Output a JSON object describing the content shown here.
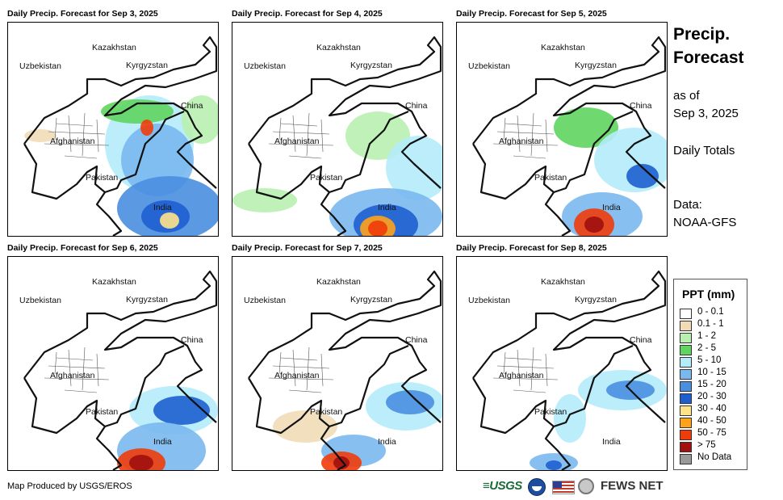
{
  "panels": [
    {
      "title": "Daily Precip. Forecast for Sep 3, 2025"
    },
    {
      "title": "Daily Precip. Forecast for Sep 4, 2025"
    },
    {
      "title": "Daily Precip. Forecast for Sep 5, 2025"
    },
    {
      "title": "Daily Precip. Forecast for Sep 6, 2025"
    },
    {
      "title": "Daily Precip. Forecast for Sep 7, 2025"
    },
    {
      "title": "Daily Precip. Forecast for Sep 8, 2025"
    }
  ],
  "map_labels": {
    "kazakhstan": "Kazakhstan",
    "uzbekistan": "Uzbekistan",
    "kyrgyzstan": "Kyrgyzstan",
    "china": "China",
    "afghanistan": "Afghanistan",
    "pakistan": "Pakistan",
    "india": "India"
  },
  "side": {
    "title_line1": "Precip.",
    "title_line2": "Forecast",
    "asof_line1": "as of",
    "asof_line2": "Sep 3, 2025",
    "totals": "Daily Totals",
    "data_line1": "Data:",
    "data_line2": "NOAA-GFS"
  },
  "legend": {
    "title": "PPT (mm)",
    "items": [
      {
        "label": "0 - 0.1",
        "color": "#ffffff"
      },
      {
        "label": "0.1 - 1",
        "color": "#f1dcb6"
      },
      {
        "label": "1 - 2",
        "color": "#b8f0b0"
      },
      {
        "label": "2 - 5",
        "color": "#5fd45f"
      },
      {
        "label": "5 - 10",
        "color": "#b4ecfa"
      },
      {
        "label": "10 - 15",
        "color": "#7ab8f0"
      },
      {
        "label": "15 - 20",
        "color": "#4a8ee0"
      },
      {
        "label": "20 - 30",
        "color": "#1e5fd0"
      },
      {
        "label": "30 - 40",
        "color": "#ffe28a"
      },
      {
        "label": "40 - 50",
        "color": "#ffa21a"
      },
      {
        "label": "50 - 75",
        "color": "#f03c0a"
      },
      {
        "label": "> 75",
        "color": "#a01010"
      },
      {
        "label": "No Data",
        "color": "#999999"
      }
    ]
  },
  "credit": "Map Produced by USGS/EROS",
  "logos": {
    "usgs": "≡USGS",
    "fews": "FEWS NET"
  }
}
